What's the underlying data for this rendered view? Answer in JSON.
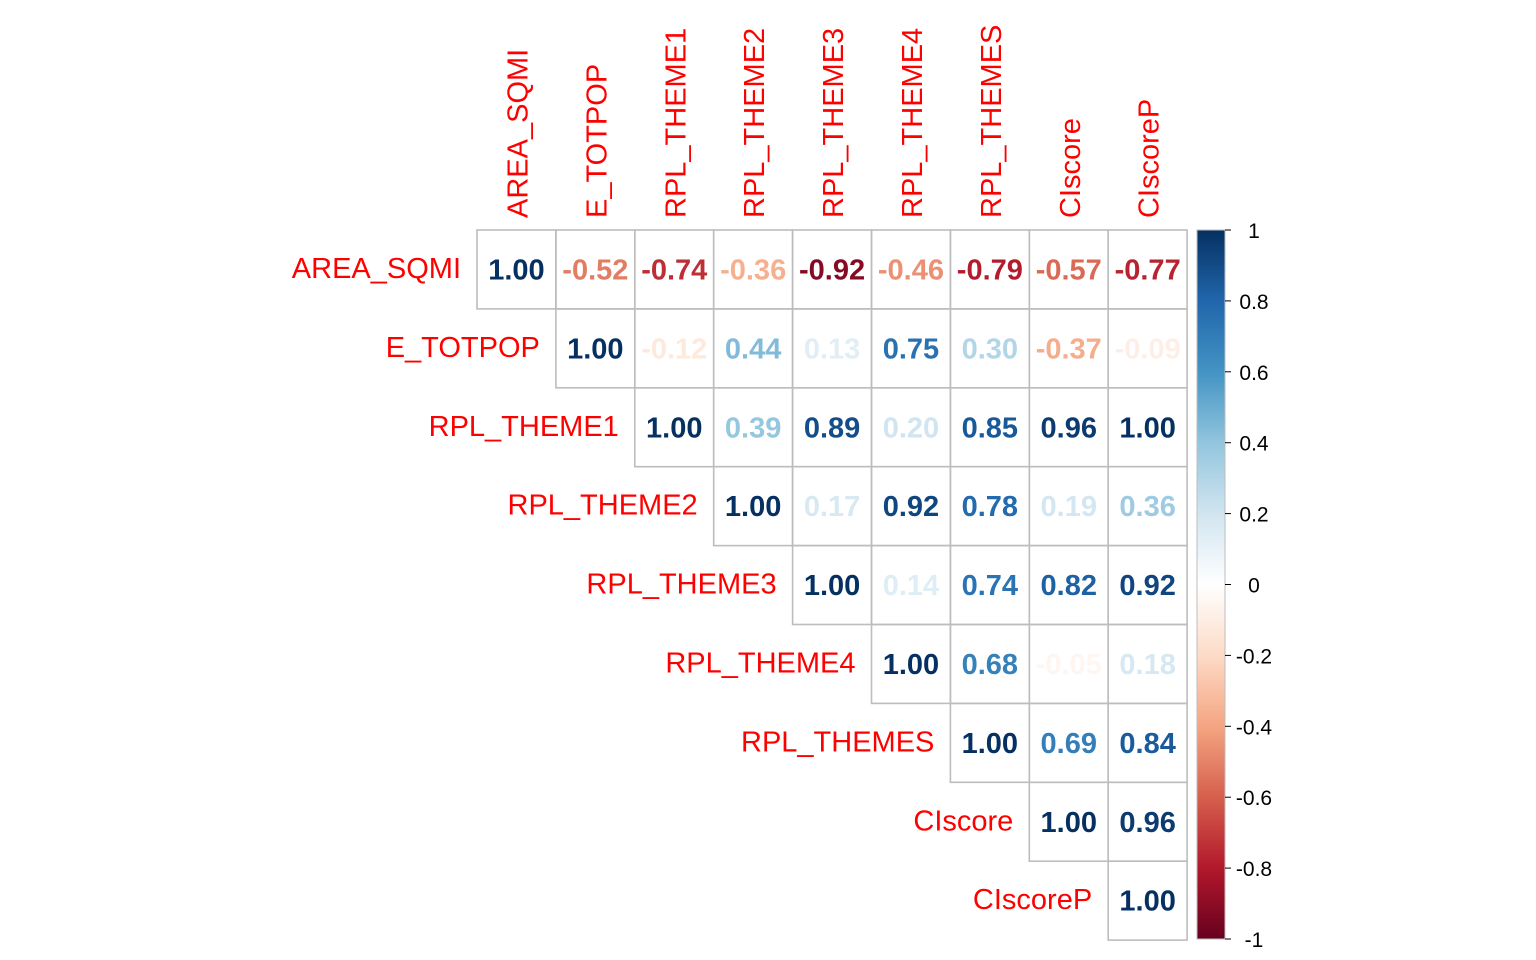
{
  "chart_data": {
    "type": "heatmap",
    "variables": [
      "AREA_SQMI",
      "E_TOTPOP",
      "RPL_THEME1",
      "RPL_THEME2",
      "RPL_THEME3",
      "RPL_THEME4",
      "RPL_THEMES",
      "CIscore",
      "CIscoreP"
    ],
    "matrix": [
      [
        1.0,
        -0.52,
        -0.74,
        -0.36,
        -0.92,
        -0.46,
        -0.79,
        -0.57,
        -0.77
      ],
      [
        null,
        1.0,
        -0.12,
        0.44,
        0.13,
        0.75,
        0.3,
        -0.37,
        -0.09
      ],
      [
        null,
        null,
        1.0,
        0.39,
        0.89,
        0.2,
        0.85,
        0.96,
        1.0
      ],
      [
        null,
        null,
        null,
        1.0,
        0.17,
        0.92,
        0.78,
        0.19,
        0.36
      ],
      [
        null,
        null,
        null,
        null,
        1.0,
        0.14,
        0.74,
        0.82,
        0.92
      ],
      [
        null,
        null,
        null,
        null,
        null,
        1.0,
        0.68,
        -0.05,
        0.18
      ],
      [
        null,
        null,
        null,
        null,
        null,
        null,
        1.0,
        0.69,
        0.84
      ],
      [
        null,
        null,
        null,
        null,
        null,
        null,
        null,
        1.0,
        0.96
      ],
      [
        null,
        null,
        null,
        null,
        null,
        null,
        null,
        null,
        1.0
      ]
    ],
    "triangle": "upper",
    "value_format": "2 decimals",
    "label_color": "#ff0000",
    "colorbar": {
      "range": [
        -1,
        1
      ],
      "ticks": [
        "1",
        "0.8",
        "0.6",
        "0.4",
        "0.2",
        "0",
        "-0.2",
        "-0.4",
        "-0.6",
        "-0.8",
        "-1"
      ],
      "position": "right",
      "colors": [
        "#67001F",
        "#B2182B",
        "#D6604D",
        "#F4A582",
        "#FDDBC7",
        "#FFFFFF",
        "#D1E5F0",
        "#92C5DE",
        "#4393C3",
        "#2166AC",
        "#053061"
      ]
    }
  }
}
